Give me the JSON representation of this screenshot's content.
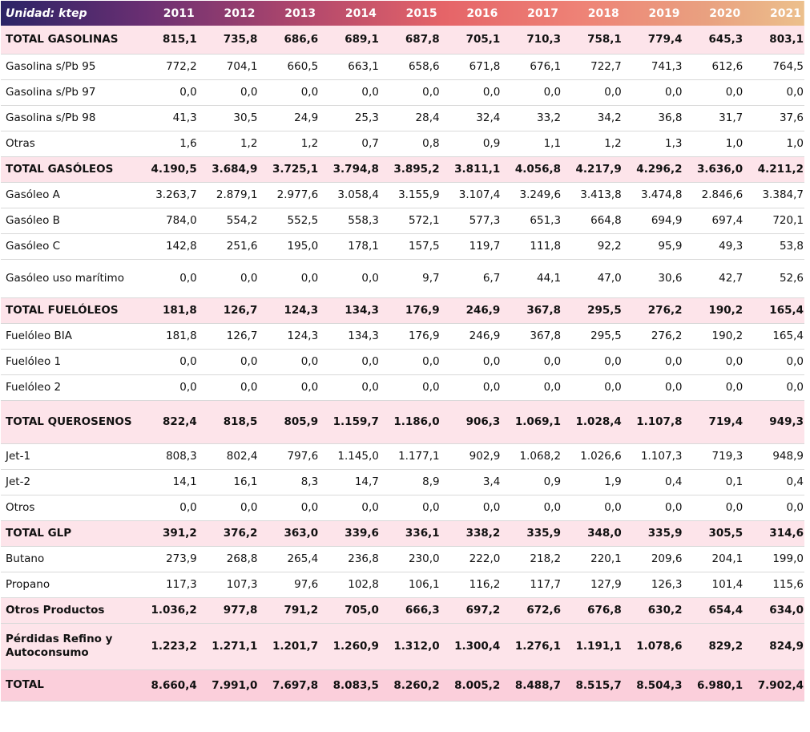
{
  "header": {
    "unit_label": "Unidad: ktep",
    "years": [
      "2011",
      "2012",
      "2013",
      "2014",
      "2015",
      "2016",
      "2017",
      "2018",
      "2019",
      "2020",
      "2021"
    ]
  },
  "rows": [
    {
      "label": "TOTAL GASOLINAS",
      "total": true,
      "values": [
        "815,1",
        "735,8",
        "686,6",
        "689,1",
        "687,8",
        "705,1",
        "710,3",
        "758,1",
        "779,4",
        "645,3",
        "803,1"
      ]
    },
    {
      "label": "Gasolina s/Pb 95",
      "total": false,
      "values": [
        "772,2",
        "704,1",
        "660,5",
        "663,1",
        "658,6",
        "671,8",
        "676,1",
        "722,7",
        "741,3",
        "612,6",
        "764,5"
      ]
    },
    {
      "label": "Gasolina s/Pb 97",
      "total": false,
      "values": [
        "0,0",
        "0,0",
        "0,0",
        "0,0",
        "0,0",
        "0,0",
        "0,0",
        "0,0",
        "0,0",
        "0,0",
        "0,0"
      ]
    },
    {
      "label": "Gasolina s/Pb 98",
      "total": false,
      "values": [
        "41,3",
        "30,5",
        "24,9",
        "25,3",
        "28,4",
        "32,4",
        "33,2",
        "34,2",
        "36,8",
        "31,7",
        "37,6"
      ]
    },
    {
      "label": "Otras",
      "total": false,
      "values": [
        "1,6",
        "1,2",
        "1,2",
        "0,7",
        "0,8",
        "0,9",
        "1,1",
        "1,2",
        "1,3",
        "1,0",
        "1,0"
      ]
    },
    {
      "label": "TOTAL GASÓLEOS",
      "total": true,
      "values": [
        "4.190,5",
        "3.684,9",
        "3.725,1",
        "3.794,8",
        "3.895,2",
        "3.811,1",
        "4.056,8",
        "4.217,9",
        "4.296,2",
        "3.636,0",
        "4.211,2"
      ]
    },
    {
      "label": "Gasóleo A",
      "total": false,
      "values": [
        "3.263,7",
        "2.879,1",
        "2.977,6",
        "3.058,4",
        "3.155,9",
        "3.107,4",
        "3.249,6",
        "3.413,8",
        "3.474,8",
        "2.846,6",
        "3.384,7"
      ]
    },
    {
      "label": "Gasóleo B",
      "total": false,
      "values": [
        "784,0",
        "554,2",
        "552,5",
        "558,3",
        "572,1",
        "577,3",
        "651,3",
        "664,8",
        "694,9",
        "697,4",
        "720,1"
      ]
    },
    {
      "label": "Gasóleo C",
      "total": false,
      "values": [
        "142,8",
        "251,6",
        "195,0",
        "178,1",
        "157,5",
        "119,7",
        "111,8",
        "92,2",
        "95,9",
        "49,3",
        "53,8"
      ]
    },
    {
      "label": "Gasóleo uso marítimo",
      "total": false,
      "tall": true,
      "values": [
        "0,0",
        "0,0",
        "0,0",
        "0,0",
        "9,7",
        "6,7",
        "44,1",
        "47,0",
        "30,6",
        "42,7",
        "52,6"
      ]
    },
    {
      "label": "TOTAL FUELÓLEOS",
      "total": true,
      "values": [
        "181,8",
        "126,7",
        "124,3",
        "134,3",
        "176,9",
        "246,9",
        "367,8",
        "295,5",
        "276,2",
        "190,2",
        "165,4"
      ]
    },
    {
      "label": "Fuelóleo BIA",
      "total": false,
      "values": [
        "181,8",
        "126,7",
        "124,3",
        "134,3",
        "176,9",
        "246,9",
        "367,8",
        "295,5",
        "276,2",
        "190,2",
        "165,4"
      ]
    },
    {
      "label": "Fuelóleo 1",
      "total": false,
      "values": [
        "0,0",
        "0,0",
        "0,0",
        "0,0",
        "0,0",
        "0,0",
        "0,0",
        "0,0",
        "0,0",
        "0,0",
        "0,0"
      ]
    },
    {
      "label": "Fuelóleo 2",
      "total": false,
      "values": [
        "0,0",
        "0,0",
        "0,0",
        "0,0",
        "0,0",
        "0,0",
        "0,0",
        "0,0",
        "0,0",
        "0,0",
        "0,0"
      ]
    },
    {
      "label": "TOTAL QUEROSENOS",
      "total": true,
      "tall": true,
      "values": [
        "822,4",
        "818,5",
        "805,9",
        "1.159,7",
        "1.186,0",
        "906,3",
        "1.069,1",
        "1.028,4",
        "1.107,8",
        "719,4",
        "949,3"
      ]
    },
    {
      "label": "Jet-1",
      "total": false,
      "values": [
        "808,3",
        "802,4",
        "797,6",
        "1.145,0",
        "1.177,1",
        "902,9",
        "1.068,2",
        "1.026,6",
        "1.107,3",
        "719,3",
        "948,9"
      ]
    },
    {
      "label": "Jet-2",
      "total": false,
      "values": [
        "14,1",
        "16,1",
        "8,3",
        "14,7",
        "8,9",
        "3,4",
        "0,9",
        "1,9",
        "0,4",
        "0,1",
        "0,4"
      ]
    },
    {
      "label": "Otros",
      "total": false,
      "values": [
        "0,0",
        "0,0",
        "0,0",
        "0,0",
        "0,0",
        "0,0",
        "0,0",
        "0,0",
        "0,0",
        "0,0",
        "0,0"
      ]
    },
    {
      "label": "TOTAL GLP",
      "total": true,
      "values": [
        "391,2",
        "376,2",
        "363,0",
        "339,6",
        "336,1",
        "338,2",
        "335,9",
        "348,0",
        "335,9",
        "305,5",
        "314,6"
      ]
    },
    {
      "label": "Butano",
      "total": false,
      "values": [
        "273,9",
        "268,8",
        "265,4",
        "236,8",
        "230,0",
        "222,0",
        "218,2",
        "220,1",
        "209,6",
        "204,1",
        "199,0"
      ]
    },
    {
      "label": "Propano",
      "total": false,
      "values": [
        "117,3",
        "107,3",
        "97,6",
        "102,8",
        "106,1",
        "116,2",
        "117,7",
        "127,9",
        "126,3",
        "101,4",
        "115,6"
      ]
    },
    {
      "label": "Otros Productos",
      "total": true,
      "values": [
        "1.036,2",
        "977,8",
        "791,2",
        "705,0",
        "666,3",
        "697,2",
        "672,6",
        "676,8",
        "630,2",
        "654,4",
        "634,0"
      ]
    },
    {
      "label": "Pérdidas Refino y Autoconsumo",
      "total": true,
      "tall": true,
      "values": [
        "1.223,2",
        "1.271,1",
        "1.201,7",
        "1.260,9",
        "1.312,0",
        "1.300,4",
        "1.276,1",
        "1.191,1",
        "1.078,6",
        "829,2",
        "824,9"
      ]
    },
    {
      "label": "TOTAL",
      "grand": true,
      "values": [
        "8.660,4",
        "7.991,0",
        "7.697,8",
        "8.083,5",
        "8.260,2",
        "8.005,2",
        "8.488,7",
        "8.515,7",
        "8.504,3",
        "6.980,1",
        "7.902,4"
      ]
    }
  ]
}
